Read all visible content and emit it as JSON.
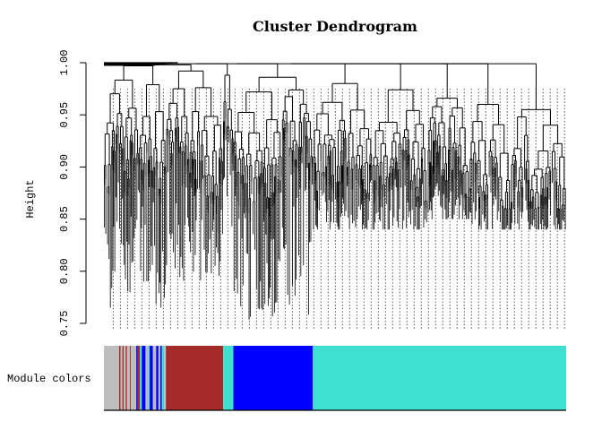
{
  "chart_data": {
    "type": "dendrogram",
    "title": "Cluster Dendrogram",
    "ylabel": "Height",
    "xlabel": "",
    "ylim": [
      0.75,
      1.0
    ],
    "y_ticks": [
      "0.75",
      "0.80",
      "0.85",
      "0.90",
      "0.95",
      "1.00"
    ],
    "y_tick_values": [
      0.75,
      0.8,
      0.85,
      0.9,
      0.95,
      1.0
    ],
    "grid": false,
    "color_bar_label": "Module colors",
    "module_colors": {
      "grey": "#bebebe",
      "brown": "#a52a2a",
      "turquoise": "#40e0d0",
      "blue": "#0000ff"
    },
    "module_color_segments": [
      {
        "module": "grey",
        "start": 0.0,
        "end": 0.033
      },
      {
        "module": "brown",
        "start": 0.033,
        "end": 0.036
      },
      {
        "module": "grey",
        "start": 0.036,
        "end": 0.04
      },
      {
        "module": "brown",
        "start": 0.04,
        "end": 0.043
      },
      {
        "module": "grey",
        "start": 0.043,
        "end": 0.047
      },
      {
        "module": "brown",
        "start": 0.047,
        "end": 0.05
      },
      {
        "module": "grey",
        "start": 0.05,
        "end": 0.056
      },
      {
        "module": "brown",
        "start": 0.056,
        "end": 0.058
      },
      {
        "module": "grey",
        "start": 0.058,
        "end": 0.07
      },
      {
        "module": "blue",
        "start": 0.07,
        "end": 0.073
      },
      {
        "module": "brown",
        "start": 0.073,
        "end": 0.078
      },
      {
        "module": "turquoise",
        "start": 0.078,
        "end": 0.082
      },
      {
        "module": "blue",
        "start": 0.082,
        "end": 0.09
      },
      {
        "module": "grey",
        "start": 0.09,
        "end": 0.096
      },
      {
        "module": "turquoise",
        "start": 0.096,
        "end": 0.099
      },
      {
        "module": "blue",
        "start": 0.099,
        "end": 0.106
      },
      {
        "module": "grey",
        "start": 0.106,
        "end": 0.113
      },
      {
        "module": "blue",
        "start": 0.113,
        "end": 0.118
      },
      {
        "module": "grey",
        "start": 0.118,
        "end": 0.122
      },
      {
        "module": "blue",
        "start": 0.122,
        "end": 0.125
      },
      {
        "module": "turquoise",
        "start": 0.125,
        "end": 0.13
      },
      {
        "module": "grey",
        "start": 0.13,
        "end": 0.134
      },
      {
        "module": "brown",
        "start": 0.134,
        "end": 0.258
      },
      {
        "module": "turquoise",
        "start": 0.258,
        "end": 0.28
      },
      {
        "module": "blue",
        "start": 0.28,
        "end": 0.452
      },
      {
        "module": "turquoise",
        "start": 0.452,
        "end": 1.0
      }
    ],
    "clusters": [
      {
        "module": "grey",
        "start": 0.0,
        "end": 0.134,
        "merge_height": 0.997,
        "min_leaf": 0.76
      },
      {
        "module": "brown",
        "start": 0.134,
        "end": 0.258,
        "merge_height": 0.992,
        "min_leaf": 0.79
      },
      {
        "module": "turquoise",
        "start": 0.258,
        "end": 0.28,
        "merge_height": 0.988,
        "min_leaf": 0.84
      },
      {
        "module": "blue",
        "start": 0.28,
        "end": 0.452,
        "merge_height": 0.986,
        "min_leaf": 0.75
      },
      {
        "module": "turquoise",
        "start": 0.452,
        "end": 0.58,
        "merge_height": 0.98,
        "min_leaf": 0.84
      },
      {
        "module": "turquoise",
        "start": 0.58,
        "end": 0.7,
        "merge_height": 0.974,
        "min_leaf": 0.84
      },
      {
        "module": "turquoise",
        "start": 0.7,
        "end": 0.79,
        "merge_height": 0.966,
        "min_leaf": 0.85
      },
      {
        "module": "turquoise",
        "start": 0.79,
        "end": 0.88,
        "merge_height": 0.96,
        "min_leaf": 0.84
      },
      {
        "module": "turquoise",
        "start": 0.88,
        "end": 1.0,
        "merge_height": 0.955,
        "min_leaf": 0.84
      }
    ]
  }
}
